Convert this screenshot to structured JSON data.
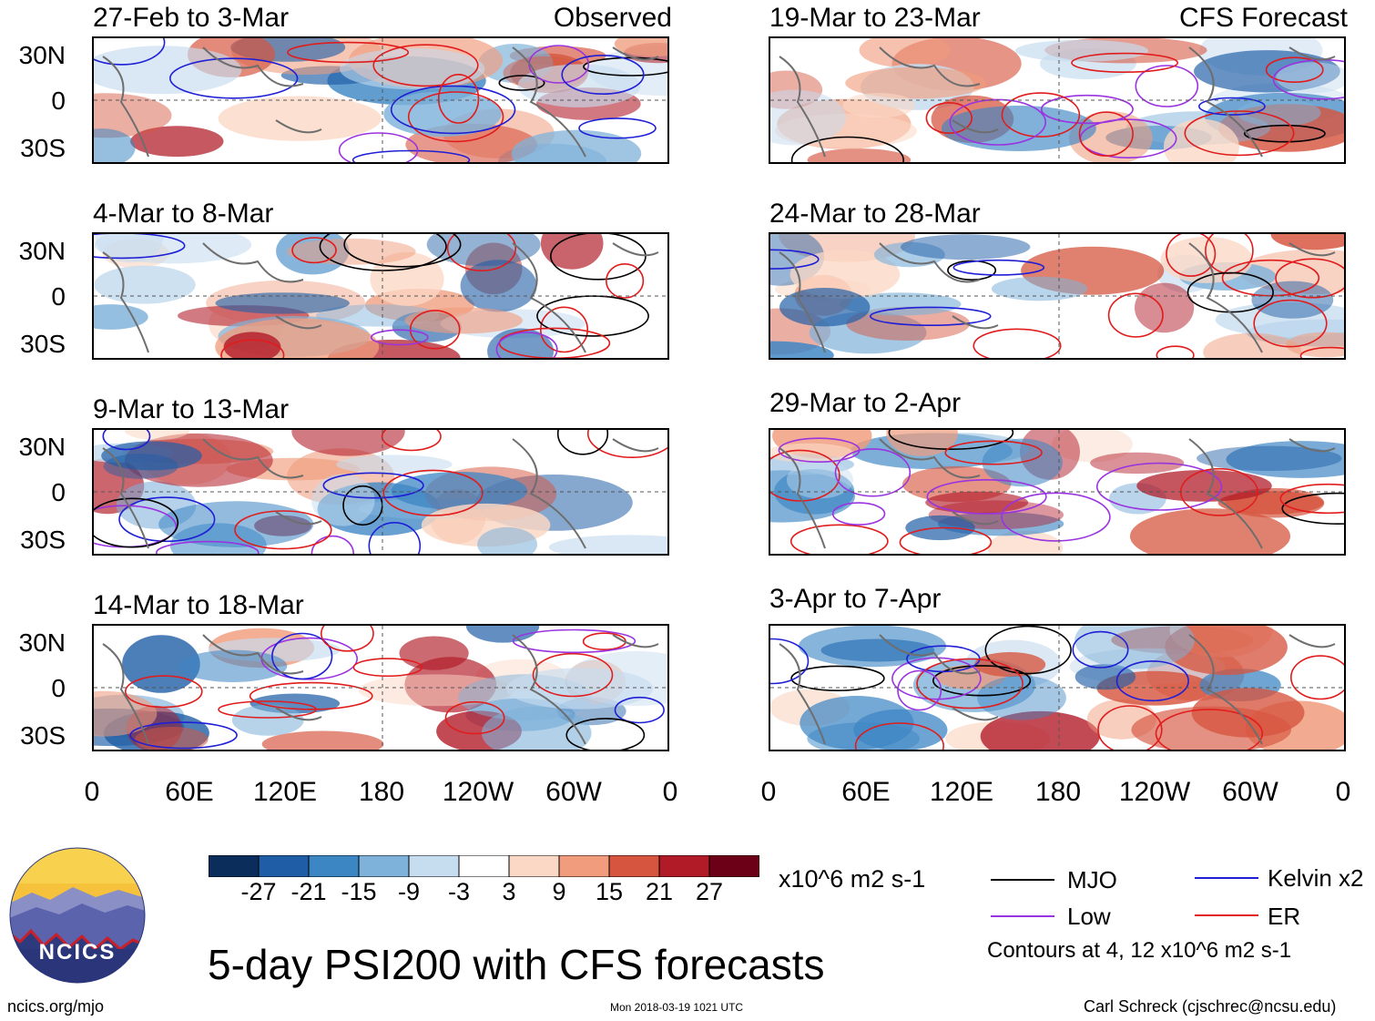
{
  "panels": [
    {
      "title": "27-Feb to 3-Mar",
      "tag": "Observed",
      "column": "left"
    },
    {
      "title": "4-Mar to 8-Mar",
      "tag": "",
      "column": "left"
    },
    {
      "title": "9-Mar to 13-Mar",
      "tag": "",
      "column": "left"
    },
    {
      "title": "14-Mar to 18-Mar",
      "tag": "",
      "column": "left"
    },
    {
      "title": "19-Mar to 23-Mar",
      "tag": "CFS Forecast",
      "column": "right"
    },
    {
      "title": "24-Mar to 28-Mar",
      "tag": "",
      "column": "right"
    },
    {
      "title": "29-Mar to 2-Apr",
      "tag": "",
      "column": "right"
    },
    {
      "title": "3-Apr to 7-Apr",
      "tag": "",
      "column": "right"
    }
  ],
  "axes": {
    "lat_labels": [
      "30N",
      "0",
      "30S"
    ],
    "lon_labels": [
      "0",
      "60E",
      "120E",
      "180",
      "120W",
      "60W",
      "0"
    ]
  },
  "colorbar": {
    "ticks": [
      "-27",
      "-21",
      "-15",
      "-9",
      "-3",
      "3",
      "9",
      "15",
      "21",
      "27"
    ],
    "units": "x10^6 m2 s-1",
    "colors": [
      "#0b2d5b",
      "#1f5ea6",
      "#3d86c4",
      "#7fb2da",
      "#c6dcef",
      "#ffffff",
      "#fbd8c5",
      "#f09c7d",
      "#d6553f",
      "#b11a27",
      "#6c0016"
    ]
  },
  "legend": {
    "mjo": {
      "label": "MJO",
      "color": "#000000"
    },
    "kelvin": {
      "label": "Kelvin x2",
      "color": "#1f1fd6"
    },
    "low": {
      "label": "Low",
      "color": "#9a33e0"
    },
    "er": {
      "label": "ER",
      "color": "#e11c1c"
    },
    "note": "Contours at 4, 12 x10^6 m2 s-1"
  },
  "footer": {
    "title": "5-day PSI200 with CFS forecasts",
    "logo_text": "NCICS",
    "url": "ncics.org/mjo",
    "timestamp": "Mon 2018-03-19 1021 UTC",
    "credit": "Carl Schreck (cjschrec@ncsu.edu)"
  }
}
